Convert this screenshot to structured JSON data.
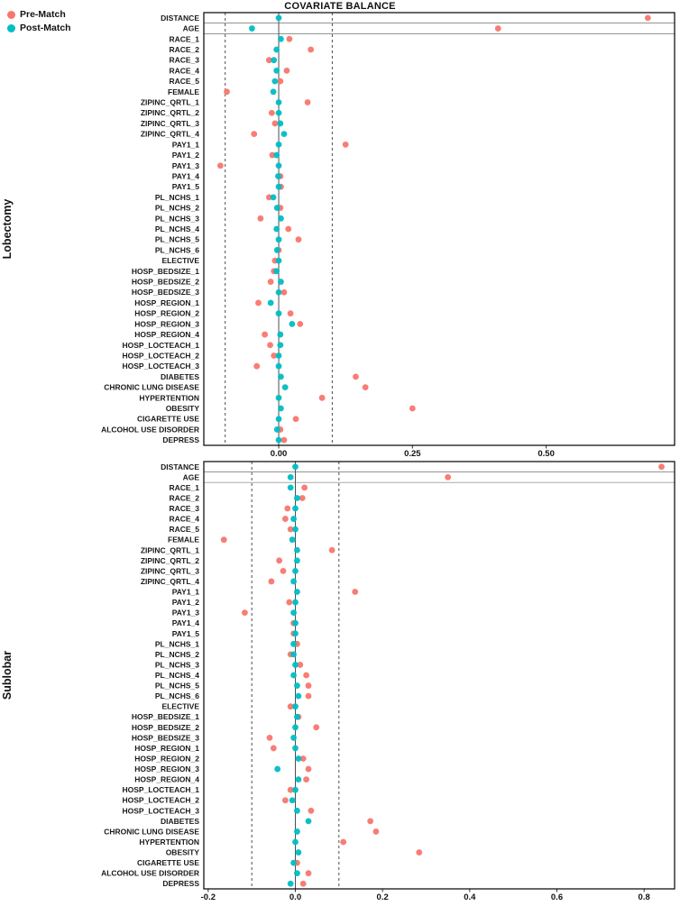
{
  "title": "COVARIATE BALANCE",
  "colors": {
    "pre_match": "#F8766D",
    "post_match": "#00BDC4",
    "zero_line": "#3a3a3a",
    "threshold_line": "#3a3a3a",
    "panel_border": "#000000",
    "row_separator": "#555555"
  },
  "legend": {
    "items": [
      {
        "label": "Pre-Match",
        "color_key": "pre_match"
      },
      {
        "label": "Post-Match",
        "color_key": "post_match"
      }
    ]
  },
  "chart_data": {
    "type": "scatter",
    "title": "COVARIATE BALANCE",
    "xlabel": "",
    "ylabel": "",
    "grid": false,
    "legend_position": "top-left",
    "zero_line": 0,
    "threshold_lines": [
      -0.1,
      0.1
    ],
    "categories": [
      "DISTANCE",
      "AGE",
      "RACE_1",
      "RACE_2",
      "RACE_3",
      "RACE_4",
      "RACE_5",
      "FEMALE",
      "ZIPINC_QRTL_1",
      "ZIPINC_QRTL_2",
      "ZIPINC_QRTL_3",
      "ZIPINC_QRTL_4",
      "PAY1_1",
      "PAY1_2",
      "PAY1_3",
      "PAY1_4",
      "PAY1_5",
      "PL_NCHS_1",
      "PL_NCHS_2",
      "PL_NCHS_3",
      "PL_NCHS_4",
      "PL_NCHS_5",
      "PL_NCHS_6",
      "ELECTIVE",
      "HOSP_BEDSIZE_1",
      "HOSP_BEDSIZE_2",
      "HOSP_BEDSIZE_3",
      "HOSP_REGION_1",
      "HOSP_REGION_2",
      "HOSP_REGION_3",
      "HOSP_REGION_4",
      "HOSP_LOCTEACH_1",
      "HOSP_LOCTEACH_2",
      "HOSP_LOCTEACH_3",
      "DIABETES",
      "CHRONIC LUNG DISEASE",
      "HYPERTENTION",
      "OBESITY",
      "CIGARETTE USE",
      "ALCOHOL USE DISORDER",
      "DEPRESS"
    ],
    "panels": [
      {
        "label": "Lobectomy",
        "xlim": [
          -0.14,
          0.74
        ],
        "xticks": [
          0.0,
          0.25,
          0.5
        ],
        "xtick_labels": [
          "0.00",
          "0.25",
          "0.50"
        ],
        "series": [
          {
            "name": "Pre-Match",
            "values": [
              0.69,
              0.41,
              0.02,
              0.06,
              -0.018,
              0.015,
              0.003,
              -0.097,
              0.054,
              -0.013,
              -0.007,
              -0.046,
              0.125,
              -0.012,
              -0.109,
              0.003,
              0.004,
              -0.018,
              0.003,
              -0.034,
              0.018,
              0.037,
              0.0,
              -0.007,
              -0.009,
              -0.015,
              0.01,
              -0.038,
              0.022,
              0.04,
              -0.026,
              -0.016,
              -0.009,
              -0.041,
              0.144,
              0.162,
              0.081,
              0.25,
              0.032,
              0.003,
              0.01
            ]
          },
          {
            "name": "Post-Match",
            "values": [
              0.0,
              -0.05,
              0.004,
              -0.004,
              -0.009,
              -0.004,
              -0.007,
              -0.01,
              0.0,
              0.0,
              0.003,
              0.01,
              0.0,
              -0.004,
              0.0,
              -0.001,
              0.0,
              -0.01,
              -0.003,
              0.004,
              -0.004,
              0.0,
              -0.003,
              0.0,
              -0.004,
              0.004,
              0.0,
              -0.015,
              0.0,
              0.025,
              0.003,
              0.003,
              0.0,
              0.0,
              0.004,
              0.012,
              0.0,
              0.004,
              0.0,
              -0.003,
              0.0
            ]
          }
        ]
      },
      {
        "label": "Sublobar",
        "xlim": [
          -0.21,
          0.87
        ],
        "xticks": [
          -0.2,
          0.0,
          0.2,
          0.4,
          0.6,
          0.8
        ],
        "xtick_labels": [
          "-0.2",
          "0.0",
          "0.2",
          "0.4",
          "0.6",
          "0.8"
        ],
        "series": [
          {
            "name": "Pre-Match",
            "values": [
              0.84,
              0.35,
              0.021,
              0.016,
              -0.018,
              -0.023,
              -0.011,
              -0.164,
              0.084,
              -0.037,
              -0.028,
              -0.055,
              0.137,
              -0.014,
              -0.116,
              -0.004,
              -0.004,
              0.004,
              -0.011,
              0.011,
              0.025,
              0.03,
              0.03,
              -0.011,
              0.007,
              0.048,
              -0.059,
              -0.05,
              0.018,
              0.03,
              0.025,
              -0.011,
              -0.023,
              0.036,
              0.172,
              0.185,
              0.11,
              0.284,
              0.004,
              0.03,
              0.018
            ]
          },
          {
            "name": "Post-Match",
            "values": [
              0.0,
              -0.011,
              -0.011,
              0.004,
              0.0,
              -0.004,
              0.0,
              -0.007,
              0.004,
              0.004,
              0.0,
              -0.004,
              0.004,
              0.0,
              -0.004,
              0.0,
              0.0,
              -0.004,
              -0.004,
              0.0,
              -0.004,
              0.004,
              0.007,
              0.0,
              0.004,
              0.0,
              -0.004,
              0.0,
              0.007,
              -0.041,
              0.007,
              0.0,
              -0.007,
              0.004,
              0.03,
              0.004,
              0.0,
              0.007,
              -0.004,
              0.004,
              -0.011
            ]
          }
        ]
      }
    ]
  }
}
